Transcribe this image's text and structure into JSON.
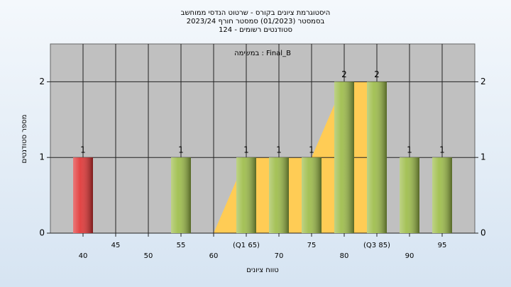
{
  "chart_data": {
    "type": "bar",
    "title": "היסטוגרמת ציונים בקורס - שרטוט הנדסי ממוחשב",
    "subtitle": "בסמסטר  (01/2023)  סמסטר חורף 2023/24",
    "subtitle2": "סטודנטים רשומים - 124",
    "annotation": "במשימה : Final_B",
    "x_label": "טווח ציונים",
    "y_label": "מספר סטודנטים",
    "x": [
      40,
      55,
      65,
      70,
      75,
      80,
      85,
      90,
      95
    ],
    "values": [
      1,
      1,
      1,
      1,
      1,
      2,
      2,
      1,
      1
    ],
    "colors": [
      "#e03030",
      "#9bbb45",
      "#9bbb45",
      "#9bbb45",
      "#9bbb45",
      "#9bbb45",
      "#9bbb45",
      "#9bbb45",
      "#9bbb45"
    ],
    "area": {
      "color": "#ffcc55",
      "x": [
        60,
        65,
        75,
        80,
        85
      ],
      "values": [
        0,
        1,
        1,
        2,
        2
      ]
    },
    "xlim": [
      35,
      100
    ],
    "xticks": [
      40,
      45,
      50,
      55,
      60,
      {
        "value": 65,
        "label": "(Q1 65)"
      },
      70,
      75,
      80,
      {
        "value": 85,
        "label": "(Q3 85)"
      },
      90,
      95
    ],
    "ylim": [
      0,
      2.5
    ],
    "yticks": [
      0,
      1,
      2
    ],
    "grid": true
  }
}
